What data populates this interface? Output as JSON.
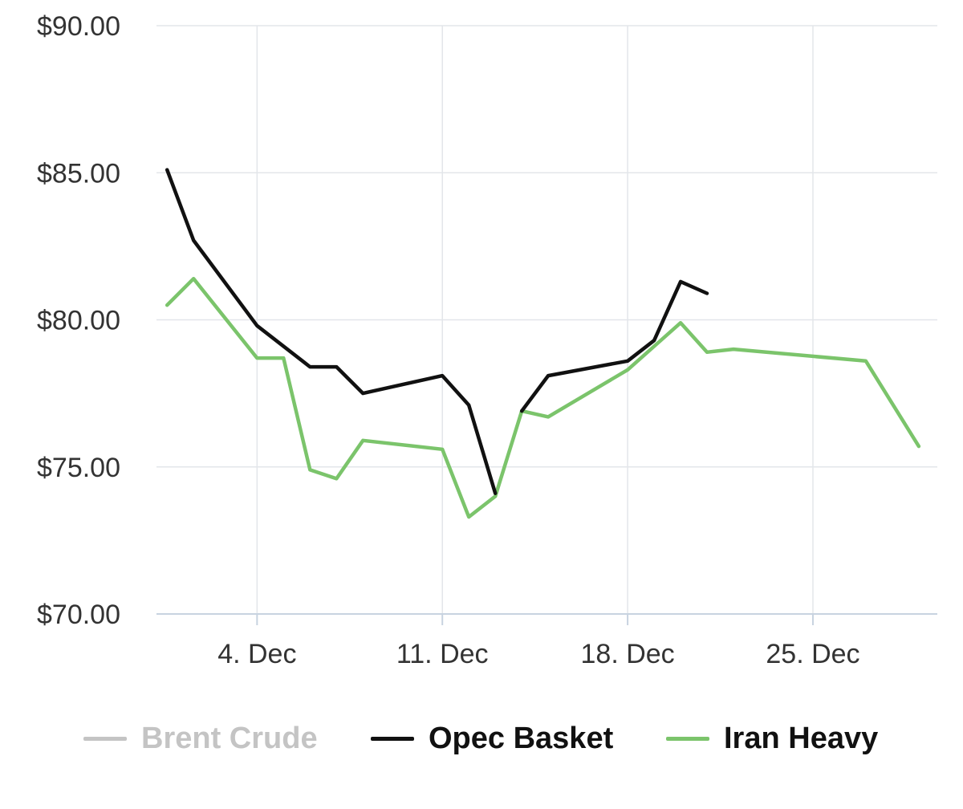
{
  "chart_data": {
    "type": "line",
    "title": "",
    "xlabel": "",
    "ylabel": "",
    "y_ticks": [
      "$70.00",
      "$75.00",
      "$80.00",
      "$85.00",
      "$90.00"
    ],
    "ylim": [
      70,
      90
    ],
    "x_ticks": [
      "4. Dec",
      "11. Dec",
      "18. Dec",
      "25. Dec"
    ],
    "x_tick_days": [
      4,
      11,
      18,
      25
    ],
    "xlim_days": [
      0.2,
      29.7
    ],
    "grid": true,
    "legend_position": "bottom-center",
    "series": [
      {
        "name": "Brent Crude",
        "color": "#c4c4c4",
        "visible": false,
        "points": []
      },
      {
        "name": "Opec Basket",
        "color": "#111111",
        "visible": true,
        "points": [
          [
            0.6,
            85.1
          ],
          [
            1.6,
            82.7
          ],
          [
            4.0,
            79.8
          ],
          [
            6.0,
            78.4
          ],
          [
            7.0,
            78.4
          ],
          [
            8.0,
            77.5
          ],
          [
            11.0,
            78.1
          ],
          [
            12.0,
            77.1
          ],
          [
            13.0,
            74.1
          ]
        ]
      },
      {
        "name": "Opec Basket",
        "color": "#111111",
        "visible": true,
        "points": [
          [
            14.0,
            76.9
          ],
          [
            15.0,
            78.1
          ],
          [
            18.0,
            78.6
          ],
          [
            19.0,
            79.3
          ],
          [
            20.0,
            81.3
          ],
          [
            21.0,
            80.9
          ]
        ]
      },
      {
        "name": "Iran Heavy",
        "color": "#7bc46b",
        "visible": true,
        "points": [
          [
            0.6,
            80.5
          ],
          [
            1.6,
            81.4
          ],
          [
            4.0,
            78.7
          ],
          [
            5.0,
            78.7
          ],
          [
            6.0,
            74.9
          ],
          [
            7.0,
            74.6
          ],
          [
            8.0,
            75.9
          ],
          [
            11.0,
            75.6
          ],
          [
            12.0,
            73.3
          ],
          [
            13.0,
            74.0
          ],
          [
            14.0,
            76.9
          ],
          [
            15.0,
            76.7
          ],
          [
            18.0,
            78.3
          ],
          [
            19.0,
            79.1
          ],
          [
            20.0,
            79.9
          ],
          [
            21.0,
            78.9
          ],
          [
            22.0,
            79.0
          ],
          [
            27.0,
            78.6
          ],
          [
            29.0,
            75.7
          ]
        ]
      }
    ]
  },
  "legend": {
    "items": [
      {
        "label": "Brent Crude",
        "color": "#c4c4c4",
        "hidden": true
      },
      {
        "label": "Opec Basket",
        "color": "#111111",
        "hidden": false
      },
      {
        "label": "Iran Heavy",
        "color": "#7bc46b",
        "hidden": false
      }
    ]
  }
}
